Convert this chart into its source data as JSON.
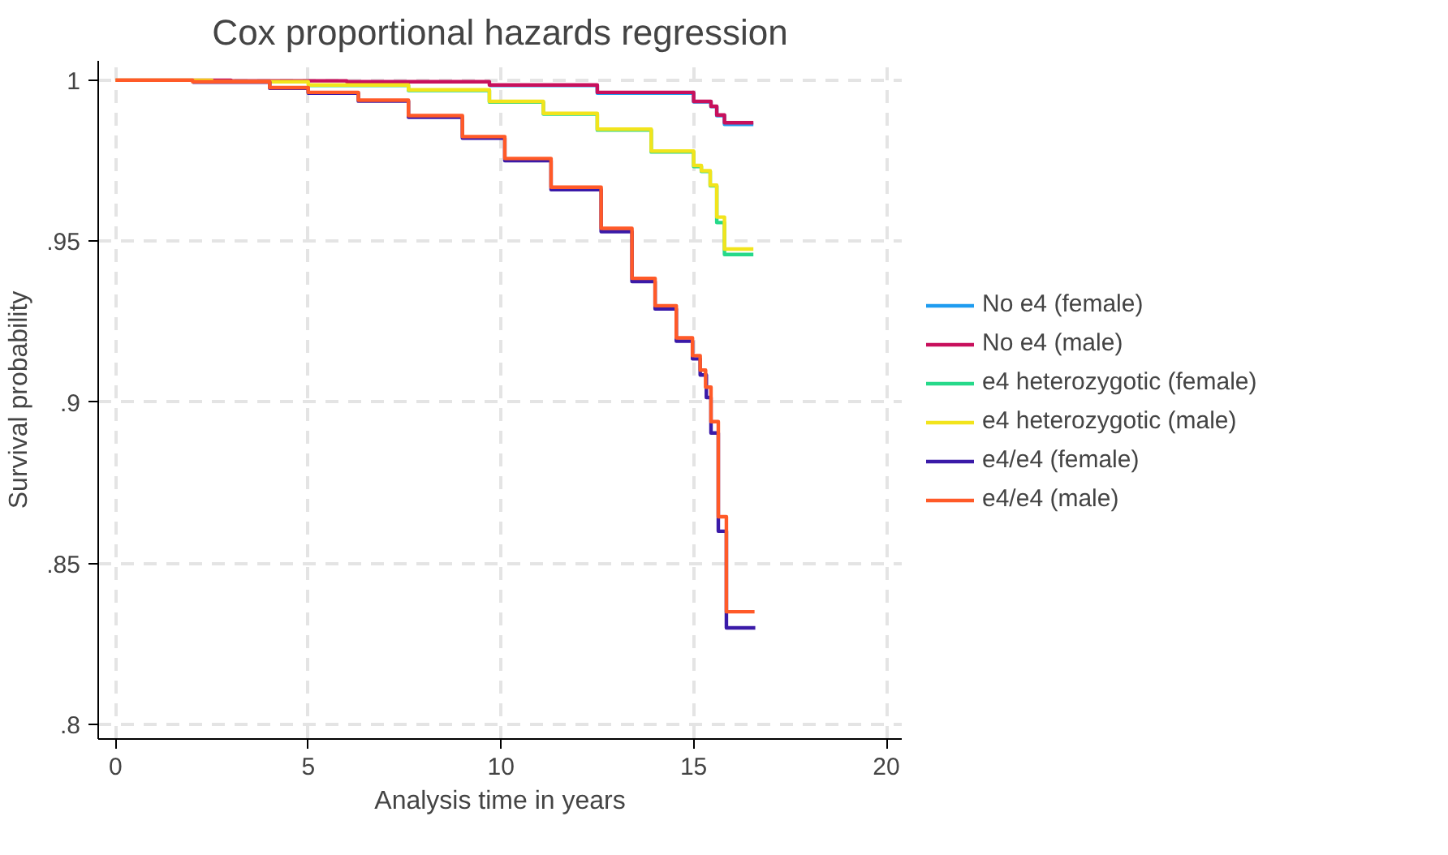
{
  "chart_data": {
    "type": "step",
    "title": "Cox proportional hazards regression",
    "xlabel": "Analysis time in years",
    "ylabel": "Survival probability",
    "xlim": [
      -0.45,
      20.4
    ],
    "ylim": [
      0.7955,
      1.006
    ],
    "xticks": [
      0,
      5,
      10,
      15,
      20
    ],
    "yticks": [
      {
        "value": 0.8,
        "label": ".8"
      },
      {
        "value": 0.85,
        "label": ".85"
      },
      {
        "value": 0.9,
        "label": ".9"
      },
      {
        "value": 0.95,
        "label": ".95"
      },
      {
        "value": 1,
        "label": "1"
      }
    ],
    "grid": true,
    "legend": "right",
    "line_style": "solid",
    "series": [
      {
        "name": "No e4 (female)",
        "color": "#1e9cf0",
        "x": [
          9.7,
          12.5,
          15,
          15.45,
          15.6,
          15.8,
          16.55
        ],
        "values": [
          0.9984,
          0.996,
          0.9933,
          0.9918,
          0.989,
          0.9863,
          0.9863
        ]
      },
      {
        "name": "No e4 (male)",
        "color": "#c8105c",
        "x": [
          0,
          3,
          6,
          9.7,
          12.5,
          15,
          15.45,
          15.6,
          15.8,
          16.55
        ],
        "values": [
          1,
          0.9998,
          0.9995,
          0.9985,
          0.9962,
          0.9934,
          0.9919,
          0.9892,
          0.9868,
          0.9868
        ]
      },
      {
        "name": "e4 heterozygotic (female)",
        "color": "#26d98a",
        "x": [
          5,
          7.6,
          9.7,
          11.1,
          12.5,
          13.9,
          15,
          15.2,
          15.43,
          15.6,
          15.8,
          16.55
        ],
        "values": [
          0.9984,
          0.9968,
          0.9932,
          0.9895,
          0.9845,
          0.9777,
          0.9732,
          0.9717,
          0.9672,
          0.9558,
          0.9459,
          0.9459
        ]
      },
      {
        "name": "e4 heterozygotic (male)",
        "color": "#f2e41c",
        "x": [
          0,
          2.5,
          5,
          7.6,
          9.7,
          11.1,
          12.5,
          13.9,
          15,
          15.2,
          15.43,
          15.6,
          15.8,
          16.55
        ],
        "values": [
          1,
          0.9995,
          0.9985,
          0.997,
          0.9934,
          0.9897,
          0.9848,
          0.978,
          0.9735,
          0.9719,
          0.9674,
          0.9575,
          0.9476,
          0.9476
        ]
      },
      {
        "name": "e4/e4 (female)",
        "color": "#3a1aa8",
        "x": [
          2,
          4,
          5,
          6.3,
          7.6,
          9,
          10.1,
          11.3,
          12.6,
          13.4,
          14,
          14.55,
          14.97,
          15.17,
          15.33,
          15.45,
          15.64,
          15.85,
          16.6
        ],
        "values": [
          0.9994,
          0.9975,
          0.996,
          0.9935,
          0.9885,
          0.982,
          0.975,
          0.966,
          0.953,
          0.9375,
          0.929,
          0.919,
          0.9135,
          0.9085,
          0.9015,
          0.8905,
          0.86,
          0.83,
          0.83
        ]
      },
      {
        "name": "e4/e4 (male)",
        "color": "#ff5a28",
        "x": [
          0,
          2,
          4,
          5,
          6.3,
          7.6,
          9,
          10.1,
          11.3,
          12.6,
          13.4,
          14,
          14.55,
          14.97,
          15.17,
          15.31,
          15.45,
          15.64,
          15.85,
          16.58
        ],
        "values": [
          1,
          0.9995,
          0.9977,
          0.9962,
          0.9938,
          0.989,
          0.9825,
          0.9757,
          0.9668,
          0.954,
          0.9385,
          0.93,
          0.92,
          0.9145,
          0.91,
          0.9047,
          0.894,
          0.8645,
          0.835,
          0.835
        ]
      }
    ]
  }
}
